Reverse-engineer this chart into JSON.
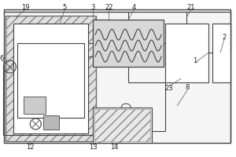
{
  "lc": "#444444",
  "lc2": "#666666",
  "bg": "#e8e8e8",
  "coil_color": "#444444",
  "hatch_fc": "#d0d0d0",
  "figsize": [
    3.0,
    2.0
  ],
  "dpi": 100
}
